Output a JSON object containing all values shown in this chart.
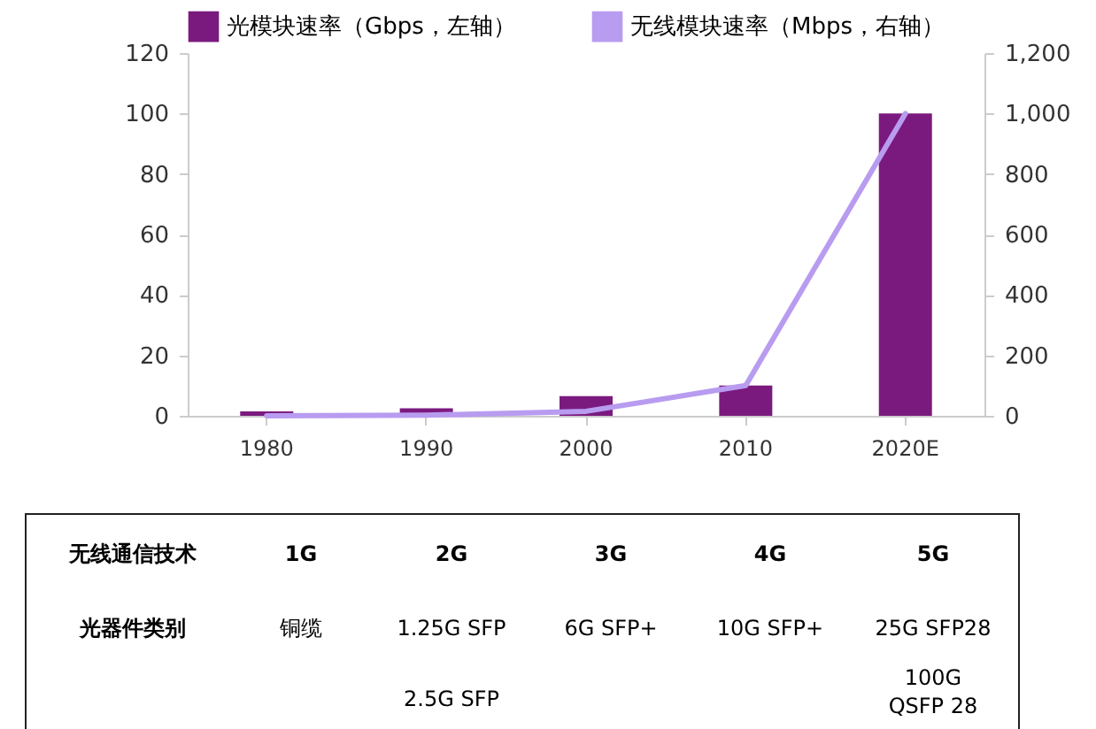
{
  "chart_data": {
    "type": "bar",
    "categories": [
      "1980",
      "1990",
      "2000",
      "2010",
      "2020E"
    ],
    "series": [
      {
        "name": "光模块速率（Gbps，左轴）",
        "color": "#7b1a7e",
        "values": [
          1.5,
          2.5,
          6.5,
          10,
          100
        ]
      },
      {
        "name": "无线模块速率（Mbps，右轴）",
        "type": "line",
        "axis": "y2",
        "color": "#b89cf0",
        "values": [
          0,
          2,
          15,
          100,
          1000
        ]
      }
    ],
    "ylim": [
      0,
      120
    ],
    "yticks": [
      0,
      20,
      40,
      60,
      80,
      100,
      120
    ],
    "y2lim": [
      0,
      1200
    ],
    "y2ticks": [
      0,
      200,
      400,
      600,
      800,
      {
        "value": 1000,
        "label": "1,000"
      },
      {
        "value": 1200,
        "label": "1,200"
      }
    ],
    "grid": false,
    "legend": "top",
    "annotations": [
      "无线通信技术",
      "1G",
      "2G",
      "3G",
      "4G",
      "5G",
      "光器件类别",
      "铜缆",
      "1.25G SFP",
      "6G SFP+",
      "10G SFP+",
      "25G SFP28",
      "2.5G SFP",
      "100G QSFP 28"
    ]
  }
}
